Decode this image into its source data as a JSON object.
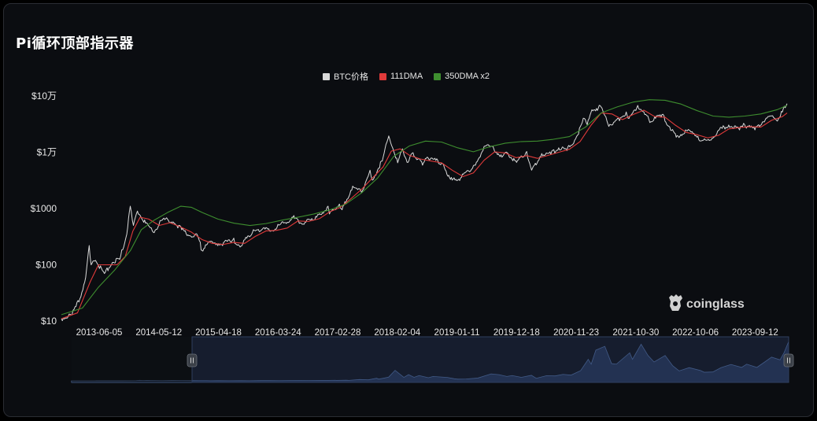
{
  "header": {
    "title": "Pi循环顶部指示器"
  },
  "legend": {
    "items": [
      {
        "label": "BTC价格",
        "color": "#d9d9d9"
      },
      {
        "label": "111DMA",
        "color": "#e03a3a"
      },
      {
        "label": "350DMA x2",
        "color": "#3e8e2f"
      }
    ]
  },
  "watermark": {
    "text": "coinglass",
    "icon": "coinglass-logo-icon"
  },
  "navigator": {
    "handle_icon": "grip-handle-icon"
  },
  "chart_data": {
    "type": "line",
    "title": "Pi循环顶部指示器",
    "y_scale": "log",
    "ylim": [
      10,
      100000
    ],
    "y_ticks": [
      {
        "value": 10,
        "label": "$10"
      },
      {
        "value": 100,
        "label": "$100"
      },
      {
        "value": 1000,
        "label": "$1000"
      },
      {
        "value": 10000,
        "label": "$1万"
      },
      {
        "value": 100000,
        "label": "$10万"
      }
    ],
    "xlim": [
      "2012-11-01",
      "2024-03-13"
    ],
    "x_ticks": [
      "2013-06-05",
      "2014-05-12",
      "2015-04-18",
      "2016-03-24",
      "2017-02-28",
      "2018-02-04",
      "2019-01-11",
      "2019-12-18",
      "2020-11-23",
      "2021-10-30",
      "2022-10-06",
      "2023-09-12"
    ],
    "grid": false,
    "legend_position": "top-center",
    "series": [
      {
        "name": "BTC价格",
        "color": "#d9d9d9",
        "points": [
          [
            "2012-11-01",
            11
          ],
          [
            "2013-01-01",
            13
          ],
          [
            "2013-02-15",
            25
          ],
          [
            "2013-03-20",
            60
          ],
          [
            "2013-04-09",
            220
          ],
          [
            "2013-04-20",
            100
          ],
          [
            "2013-05-15",
            120
          ],
          [
            "2013-07-05",
            70
          ],
          [
            "2013-08-20",
            110
          ],
          [
            "2013-10-01",
            125
          ],
          [
            "2013-11-10",
            350
          ],
          [
            "2013-11-30",
            1100
          ],
          [
            "2013-12-18",
            500
          ],
          [
            "2014-01-10",
            900
          ],
          [
            "2014-02-25",
            550
          ],
          [
            "2014-04-10",
            380
          ],
          [
            "2014-06-05",
            650
          ],
          [
            "2014-08-01",
            580
          ],
          [
            "2014-09-20",
            420
          ],
          [
            "2014-11-05",
            330
          ],
          [
            "2014-12-20",
            330
          ],
          [
            "2015-01-14",
            180
          ],
          [
            "2015-03-01",
            260
          ],
          [
            "2015-05-01",
            235
          ],
          [
            "2015-07-10",
            280
          ],
          [
            "2015-08-25",
            215
          ],
          [
            "2015-11-04",
            420
          ],
          [
            "2015-12-25",
            430
          ],
          [
            "2016-02-15",
            400
          ],
          [
            "2016-06-17",
            700
          ],
          [
            "2016-08-03",
            550
          ],
          [
            "2016-10-20",
            630
          ],
          [
            "2017-01-04",
            1100
          ],
          [
            "2017-01-12",
            800
          ],
          [
            "2017-03-10",
            1200
          ],
          [
            "2017-03-25",
            950
          ],
          [
            "2017-05-25",
            2500
          ],
          [
            "2017-07-15",
            1900
          ],
          [
            "2017-09-01",
            4800
          ],
          [
            "2017-09-14",
            3200
          ],
          [
            "2017-11-10",
            7000
          ],
          [
            "2017-12-17",
            19500
          ],
          [
            "2018-02-06",
            6500
          ],
          [
            "2018-03-05",
            11500
          ],
          [
            "2018-04-06",
            6600
          ],
          [
            "2018-05-05",
            9800
          ],
          [
            "2018-06-28",
            5900
          ],
          [
            "2018-07-25",
            8200
          ],
          [
            "2018-10-15",
            6400
          ],
          [
            "2018-11-25",
            3900
          ],
          [
            "2018-12-15",
            3200
          ],
          [
            "2019-02-01",
            3500
          ],
          [
            "2019-04-10",
            5200
          ],
          [
            "2019-06-26",
            13000
          ],
          [
            "2019-08-10",
            11500
          ],
          [
            "2019-09-25",
            8200
          ],
          [
            "2019-10-26",
            9800
          ],
          [
            "2019-12-18",
            6600
          ],
          [
            "2020-02-14",
            10300
          ],
          [
            "2020-03-13",
            4800
          ],
          [
            "2020-05-10",
            9500
          ],
          [
            "2020-07-01",
            9200
          ],
          [
            "2020-08-15",
            12000
          ],
          [
            "2020-10-01",
            10700
          ],
          [
            "2020-11-25",
            19000
          ],
          [
            "2021-01-08",
            40000
          ],
          [
            "2021-01-25",
            31000
          ],
          [
            "2021-02-21",
            57000
          ],
          [
            "2021-04-14",
            64000
          ],
          [
            "2021-05-23",
            32000
          ],
          [
            "2021-06-20",
            31000
          ],
          [
            "2021-09-05",
            52000
          ],
          [
            "2021-09-21",
            40000
          ],
          [
            "2021-11-10",
            68000
          ],
          [
            "2021-12-20",
            47000
          ],
          [
            "2022-01-24",
            35000
          ],
          [
            "2022-03-29",
            47000
          ],
          [
            "2022-05-12",
            28000
          ],
          [
            "2022-06-18",
            18500
          ],
          [
            "2022-08-15",
            24500
          ],
          [
            "2022-10-20",
            19200
          ],
          [
            "2022-11-10",
            16000
          ],
          [
            "2022-12-30",
            16500
          ],
          [
            "2023-02-15",
            24500
          ],
          [
            "2023-04-14",
            30500
          ],
          [
            "2023-06-15",
            25000
          ],
          [
            "2023-07-14",
            31000
          ],
          [
            "2023-09-11",
            25000
          ],
          [
            "2023-10-24",
            34500
          ],
          [
            "2023-12-05",
            44000
          ],
          [
            "2024-01-23",
            39000
          ],
          [
            "2024-02-15",
            52000
          ],
          [
            "2024-03-13",
            73000
          ]
        ]
      },
      {
        "name": "111DMA",
        "color": "#e03a3a",
        "points": [
          [
            "2012-11-01",
            11
          ],
          [
            "2013-02-01",
            14
          ],
          [
            "2013-04-15",
            50
          ],
          [
            "2013-06-01",
            100
          ],
          [
            "2013-07-15",
            100
          ],
          [
            "2013-09-15",
            100
          ],
          [
            "2013-11-01",
            140
          ],
          [
            "2013-12-15",
            400
          ],
          [
            "2014-01-25",
            700
          ],
          [
            "2014-03-15",
            650
          ],
          [
            "2014-05-15",
            500
          ],
          [
            "2014-07-15",
            560
          ],
          [
            "2014-09-15",
            470
          ],
          [
            "2014-11-15",
            380
          ],
          [
            "2015-01-15",
            280
          ],
          [
            "2015-03-15",
            240
          ],
          [
            "2015-05-15",
            230
          ],
          [
            "2015-07-15",
            250
          ],
          [
            "2015-09-15",
            240
          ],
          [
            "2015-11-15",
            320
          ],
          [
            "2016-01-15",
            400
          ],
          [
            "2016-03-15",
            410
          ],
          [
            "2016-05-15",
            450
          ],
          [
            "2016-07-15",
            600
          ],
          [
            "2016-09-15",
            590
          ],
          [
            "2016-11-15",
            660
          ],
          [
            "2017-01-15",
            880
          ],
          [
            "2017-03-15",
            1050
          ],
          [
            "2017-05-15",
            1500
          ],
          [
            "2017-07-15",
            2200
          ],
          [
            "2017-09-15",
            3500
          ],
          [
            "2017-11-15",
            5500
          ],
          [
            "2018-01-01",
            10500
          ],
          [
            "2018-02-20",
            11500
          ],
          [
            "2018-04-15",
            8800
          ],
          [
            "2018-06-15",
            7600
          ],
          [
            "2018-08-15",
            7000
          ],
          [
            "2018-10-15",
            6500
          ],
          [
            "2018-12-15",
            4800
          ],
          [
            "2019-02-15",
            3700
          ],
          [
            "2019-04-15",
            4300
          ],
          [
            "2019-06-15",
            7200
          ],
          [
            "2019-08-15",
            10200
          ],
          [
            "2019-10-15",
            9700
          ],
          [
            "2019-12-15",
            8000
          ],
          [
            "2020-02-15",
            8700
          ],
          [
            "2020-04-15",
            7800
          ],
          [
            "2020-06-15",
            8800
          ],
          [
            "2020-08-15",
            10000
          ],
          [
            "2020-10-15",
            11300
          ],
          [
            "2020-12-15",
            15500
          ],
          [
            "2021-02-15",
            30000
          ],
          [
            "2021-04-15",
            50000
          ],
          [
            "2021-06-15",
            48000
          ],
          [
            "2021-08-15",
            38000
          ],
          [
            "2021-10-15",
            47000
          ],
          [
            "2021-12-15",
            56000
          ],
          [
            "2022-02-15",
            43000
          ],
          [
            "2022-04-15",
            42000
          ],
          [
            "2022-06-15",
            30000
          ],
          [
            "2022-08-15",
            22500
          ],
          [
            "2022-10-15",
            20500
          ],
          [
            "2022-12-15",
            18000
          ],
          [
            "2023-02-15",
            20000
          ],
          [
            "2023-04-15",
            26000
          ],
          [
            "2023-06-15",
            27500
          ],
          [
            "2023-08-15",
            28500
          ],
          [
            "2023-10-15",
            28000
          ],
          [
            "2023-12-15",
            37000
          ],
          [
            "2024-02-15",
            43000
          ],
          [
            "2024-03-13",
            50000
          ]
        ]
      },
      {
        "name": "350DMA x2",
        "color": "#3e8e2f",
        "points": [
          [
            "2012-11-01",
            13
          ],
          [
            "2013-03-01",
            17
          ],
          [
            "2013-06-01",
            40
          ],
          [
            "2013-09-01",
            80
          ],
          [
            "2013-12-01",
            180
          ],
          [
            "2014-02-01",
            420
          ],
          [
            "2014-04-15",
            620
          ],
          [
            "2014-07-01",
            850
          ],
          [
            "2014-09-15",
            1100
          ],
          [
            "2014-11-15",
            1050
          ],
          [
            "2015-01-15",
            850
          ],
          [
            "2015-04-15",
            650
          ],
          [
            "2015-07-15",
            550
          ],
          [
            "2015-10-15",
            500
          ],
          [
            "2016-01-15",
            540
          ],
          [
            "2016-04-15",
            620
          ],
          [
            "2016-07-15",
            700
          ],
          [
            "2016-10-15",
            800
          ],
          [
            "2017-01-15",
            950
          ],
          [
            "2017-04-15",
            1200
          ],
          [
            "2017-07-15",
            1900
          ],
          [
            "2017-10-15",
            3500
          ],
          [
            "2018-01-15",
            8500
          ],
          [
            "2018-04-15",
            13000
          ],
          [
            "2018-07-15",
            15800
          ],
          [
            "2018-10-15",
            15200
          ],
          [
            "2019-01-15",
            12000
          ],
          [
            "2019-04-15",
            10200
          ],
          [
            "2019-07-15",
            12500
          ],
          [
            "2019-10-15",
            14500
          ],
          [
            "2020-01-15",
            15500
          ],
          [
            "2020-04-15",
            15800
          ],
          [
            "2020-07-15",
            17000
          ],
          [
            "2020-10-15",
            19000
          ],
          [
            "2021-01-15",
            28000
          ],
          [
            "2021-04-15",
            50000
          ],
          [
            "2021-07-15",
            64000
          ],
          [
            "2021-10-15",
            78000
          ],
          [
            "2022-01-15",
            86000
          ],
          [
            "2022-04-15",
            84000
          ],
          [
            "2022-07-15",
            72000
          ],
          [
            "2022-10-15",
            55000
          ],
          [
            "2023-01-15",
            44000
          ],
          [
            "2023-04-15",
            42000
          ],
          [
            "2023-07-15",
            44000
          ],
          [
            "2023-10-15",
            48000
          ],
          [
            "2024-01-15",
            57000
          ],
          [
            "2024-03-13",
            68000
          ]
        ]
      }
    ]
  }
}
